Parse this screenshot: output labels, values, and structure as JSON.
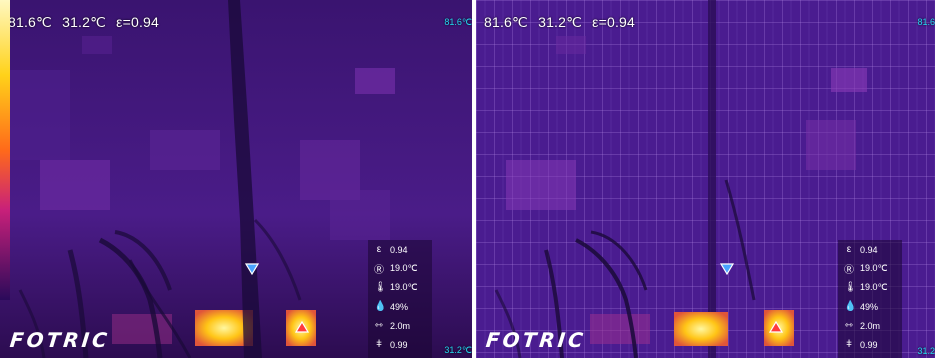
{
  "panels": [
    {
      "id": "thermal",
      "hud": {
        "max_temp": "81.6℃",
        "min_temp": "31.2℃",
        "emissivity": "ε=0.94"
      },
      "scale": {
        "max": "81.6℃",
        "min": "31.2℃"
      },
      "logo": "FOTRIC",
      "params": [
        {
          "icon": "emissivity-icon",
          "label": "ε",
          "value": "0.94"
        },
        {
          "icon": "reflected-temp-icon",
          "label": "Ⓡ",
          "value": "19.0℃"
        },
        {
          "icon": "thermometer-icon",
          "label": "🌡",
          "value": "19.0℃"
        },
        {
          "icon": "humidity-icon",
          "label": "💧",
          "value": "49%"
        },
        {
          "icon": "distance-icon",
          "label": "⇿",
          "value": "2.0m"
        },
        {
          "icon": "transmittance-icon",
          "label": "ǂ",
          "value": "0.99"
        }
      ]
    },
    {
      "id": "fusion",
      "hud": {
        "max_temp": "81.6℃",
        "min_temp": "31.2℃",
        "emissivity": "ε=0.94"
      },
      "scale": {
        "max": "81.6",
        "min": "31.2"
      },
      "logo": "FOTRIC",
      "params": [
        {
          "icon": "emissivity-icon",
          "label": "ε",
          "value": "0.94"
        },
        {
          "icon": "reflected-temp-icon",
          "label": "Ⓡ",
          "value": "19.0℃"
        },
        {
          "icon": "thermometer-icon",
          "label": "🌡",
          "value": "19.0℃"
        },
        {
          "icon": "humidity-icon",
          "label": "💧",
          "value": "49%"
        },
        {
          "icon": "distance-icon",
          "label": "⇿",
          "value": "2.0m"
        },
        {
          "icon": "transmittance-icon",
          "label": "ǂ",
          "value": "0.99"
        }
      ]
    }
  ],
  "palette": {
    "bg": "#3c1878",
    "hot": "#ffd21a",
    "cold_marker": "#4aa3ff",
    "hot_marker": "#ff3b3b"
  }
}
